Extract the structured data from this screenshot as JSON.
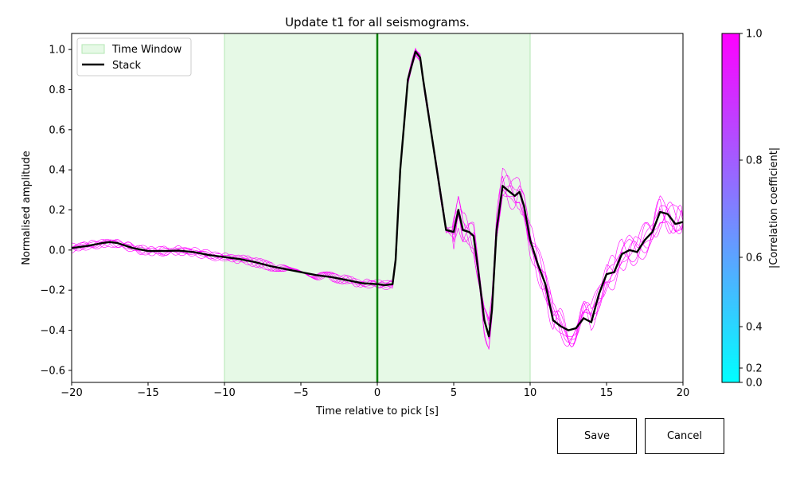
{
  "chart_data": {
    "type": "line",
    "title": "Update t1 for all seismograms.",
    "xlabel": "Time relative to pick [s]",
    "ylabel": "Normalised amplitude",
    "xlim": [
      -20,
      20
    ],
    "ylim": [
      -0.66,
      1.08
    ],
    "xticks": [
      -20,
      -15,
      -10,
      -5,
      0,
      5,
      10,
      15,
      20
    ],
    "xtick_labels": [
      "−20",
      "−15",
      "−10",
      "−5",
      "0",
      "5",
      "10",
      "15",
      "20"
    ],
    "yticks": [
      -0.6,
      -0.4,
      -0.2,
      0.0,
      0.2,
      0.4,
      0.6,
      0.8,
      1.0
    ],
    "ytick_labels": [
      "−0.6",
      "−0.4",
      "−0.2",
      "0.0",
      "0.2",
      "0.4",
      "0.6",
      "0.8",
      "1.0"
    ],
    "grid": false,
    "legend_position": "top-left",
    "time_window": {
      "label": "Time Window",
      "start": -10,
      "end": 10,
      "color": "#e6f9e6",
      "edge_color": "#b3e6b3"
    },
    "pick_line": {
      "x": 0,
      "color": "#007f00"
    },
    "stack": {
      "name": "Stack",
      "color": "#000000",
      "x": [
        -20,
        -19,
        -18,
        -17.5,
        -17,
        -16,
        -15,
        -14,
        -13,
        -12,
        -11,
        -10,
        -9,
        -8,
        -7,
        -6,
        -5,
        -4,
        -3,
        -2,
        -1,
        0,
        0.5,
        1,
        1.2,
        1.5,
        2,
        2.5,
        2.8,
        3,
        3.5,
        4,
        4.5,
        5,
        5.3,
        5.6,
        6,
        6.3,
        6.6,
        7,
        7.3,
        7.5,
        7.8,
        8.2,
        8.5,
        9,
        9.3,
        9.6,
        10,
        10.5,
        11,
        11.5,
        12,
        12.5,
        13,
        13.5,
        14,
        14.5,
        15,
        15.5,
        16,
        16.5,
        17,
        17.5,
        18,
        18.5,
        19,
        19.5,
        20
      ],
      "y": [
        0.01,
        0.02,
        0.035,
        0.04,
        0.035,
        0.01,
        -0.005,
        -0.005,
        -0.003,
        -0.01,
        -0.025,
        -0.035,
        -0.045,
        -0.06,
        -0.08,
        -0.095,
        -0.11,
        -0.125,
        -0.135,
        -0.15,
        -0.165,
        -0.17,
        -0.175,
        -0.17,
        -0.05,
        0.4,
        0.85,
        0.99,
        0.96,
        0.85,
        0.6,
        0.35,
        0.1,
        0.09,
        0.2,
        0.1,
        0.09,
        0.07,
        -0.1,
        -0.35,
        -0.43,
        -0.3,
        0.1,
        0.32,
        0.3,
        0.27,
        0.29,
        0.22,
        0.05,
        -0.07,
        -0.17,
        -0.35,
        -0.38,
        -0.4,
        -0.39,
        -0.34,
        -0.36,
        -0.22,
        -0.12,
        -0.11,
        -0.02,
        0.0,
        -0.01,
        0.05,
        0.09,
        0.19,
        0.18,
        0.13,
        0.14
      ]
    },
    "seismogram_count": 7,
    "seismogram_color": "#ff00ff",
    "colorbar": {
      "label": "|Correlation coefficient|",
      "ticks": [
        0.0,
        0.2,
        0.4,
        0.6,
        0.8,
        1.0
      ],
      "tick_labels": [
        "0.0",
        "0.2",
        "0.4",
        "0.6",
        "0.8",
        "1.0"
      ],
      "color_low": "#00ffff",
      "color_high": "#ff00ff"
    }
  },
  "buttons": {
    "save_label": "Save",
    "cancel_label": "Cancel"
  }
}
